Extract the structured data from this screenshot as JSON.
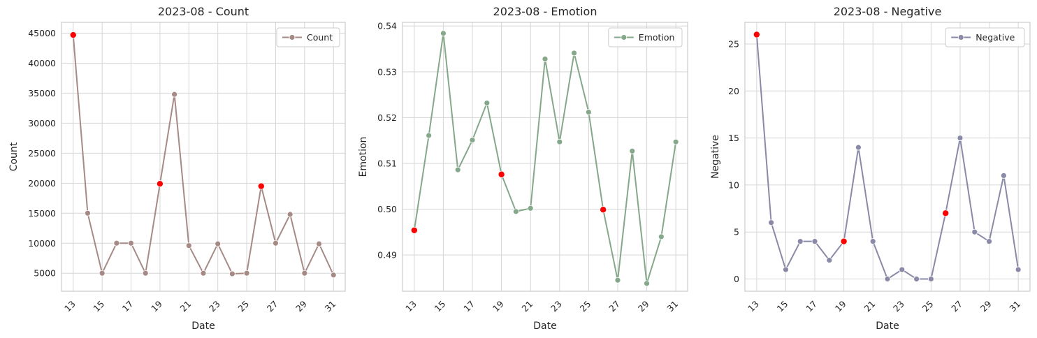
{
  "chart_data": [
    {
      "type": "line",
      "title": "2023-08 - Count",
      "xlabel": "Date",
      "ylabel": "Count",
      "x": [
        13,
        14,
        15,
        16,
        17,
        18,
        19,
        20,
        21,
        22,
        23,
        24,
        25,
        26,
        27,
        28,
        29,
        30,
        31
      ],
      "x_tick_labels": [
        "13",
        "15",
        "17",
        "19",
        "21",
        "23",
        "25",
        "27",
        "29",
        "31"
      ],
      "y_ticks": [
        5000,
        10000,
        15000,
        20000,
        25000,
        30000,
        35000,
        40000,
        45000
      ],
      "y_tick_labels": [
        "5000",
        "10000",
        "15000",
        "20000",
        "25000",
        "30000",
        "35000",
        "40000",
        "45000"
      ],
      "ylim": [
        2000,
        46800
      ],
      "grid": true,
      "legend_position": "top-right",
      "series": [
        {
          "name": "Count",
          "color": "#a68a86",
          "values": [
            44700,
            15000,
            5000,
            10000,
            10000,
            5000,
            19900,
            34800,
            9600,
            5000,
            9900,
            4900,
            5000,
            19500,
            10000,
            14800,
            5000,
            9900,
            4700
          ],
          "highlighted_x": [
            13,
            19,
            26
          ]
        }
      ],
      "highlight_color": "#ff0000"
    },
    {
      "type": "line",
      "title": "2023-08 - Emotion",
      "xlabel": "Date",
      "ylabel": "Emotion",
      "x": [
        13,
        14,
        15,
        16,
        17,
        18,
        19,
        20,
        21,
        22,
        23,
        24,
        25,
        26,
        27,
        28,
        29,
        30,
        31
      ],
      "x_tick_labels": [
        "13",
        "15",
        "17",
        "19",
        "21",
        "23",
        "25",
        "27",
        "29",
        "31"
      ],
      "y_ticks": [
        0.49,
        0.5,
        0.51,
        0.52,
        0.53,
        0.54
      ],
      "y_tick_labels": [
        "0.49",
        "0.50",
        "0.51",
        "0.52",
        "0.53",
        "0.54"
      ],
      "ylim": [
        0.4821,
        0.5408
      ],
      "grid": true,
      "legend_position": "top-right",
      "series": [
        {
          "name": "Emotion",
          "color": "#85a88a",
          "values": [
            0.4954,
            0.5161,
            0.5384,
            0.5086,
            0.5151,
            0.5232,
            0.5076,
            0.4995,
            0.5002,
            0.5328,
            0.5147,
            0.5341,
            0.5212,
            0.4999,
            0.4845,
            0.5127,
            0.4838,
            0.494,
            0.5147
          ],
          "highlighted_x": [
            13,
            19,
            26
          ]
        }
      ],
      "highlight_color": "#ff0000"
    },
    {
      "type": "line",
      "title": "2023-08 - Negative",
      "xlabel": "Date",
      "ylabel": "Negative",
      "x": [
        13,
        14,
        15,
        16,
        17,
        18,
        19,
        20,
        21,
        22,
        23,
        24,
        25,
        26,
        27,
        28,
        29,
        30,
        31
      ],
      "x_tick_labels": [
        "13",
        "15",
        "17",
        "19",
        "21",
        "23",
        "25",
        "27",
        "29",
        "31"
      ],
      "y_ticks": [
        0,
        5,
        10,
        15,
        20,
        25
      ],
      "y_tick_labels": [
        "0",
        "5",
        "10",
        "15",
        "20",
        "25"
      ],
      "ylim": [
        -1.3,
        27.3
      ],
      "grid": true,
      "legend_position": "top-right",
      "series": [
        {
          "name": "Negative",
          "color": "#8a8aa8",
          "values": [
            26,
            6,
            1,
            4,
            4,
            2,
            4,
            14,
            4,
            0,
            1,
            0,
            0,
            7,
            15,
            5,
            4,
            11,
            1
          ],
          "highlighted_x": [
            13,
            19,
            26
          ]
        }
      ],
      "highlight_color": "#ff0000"
    }
  ]
}
